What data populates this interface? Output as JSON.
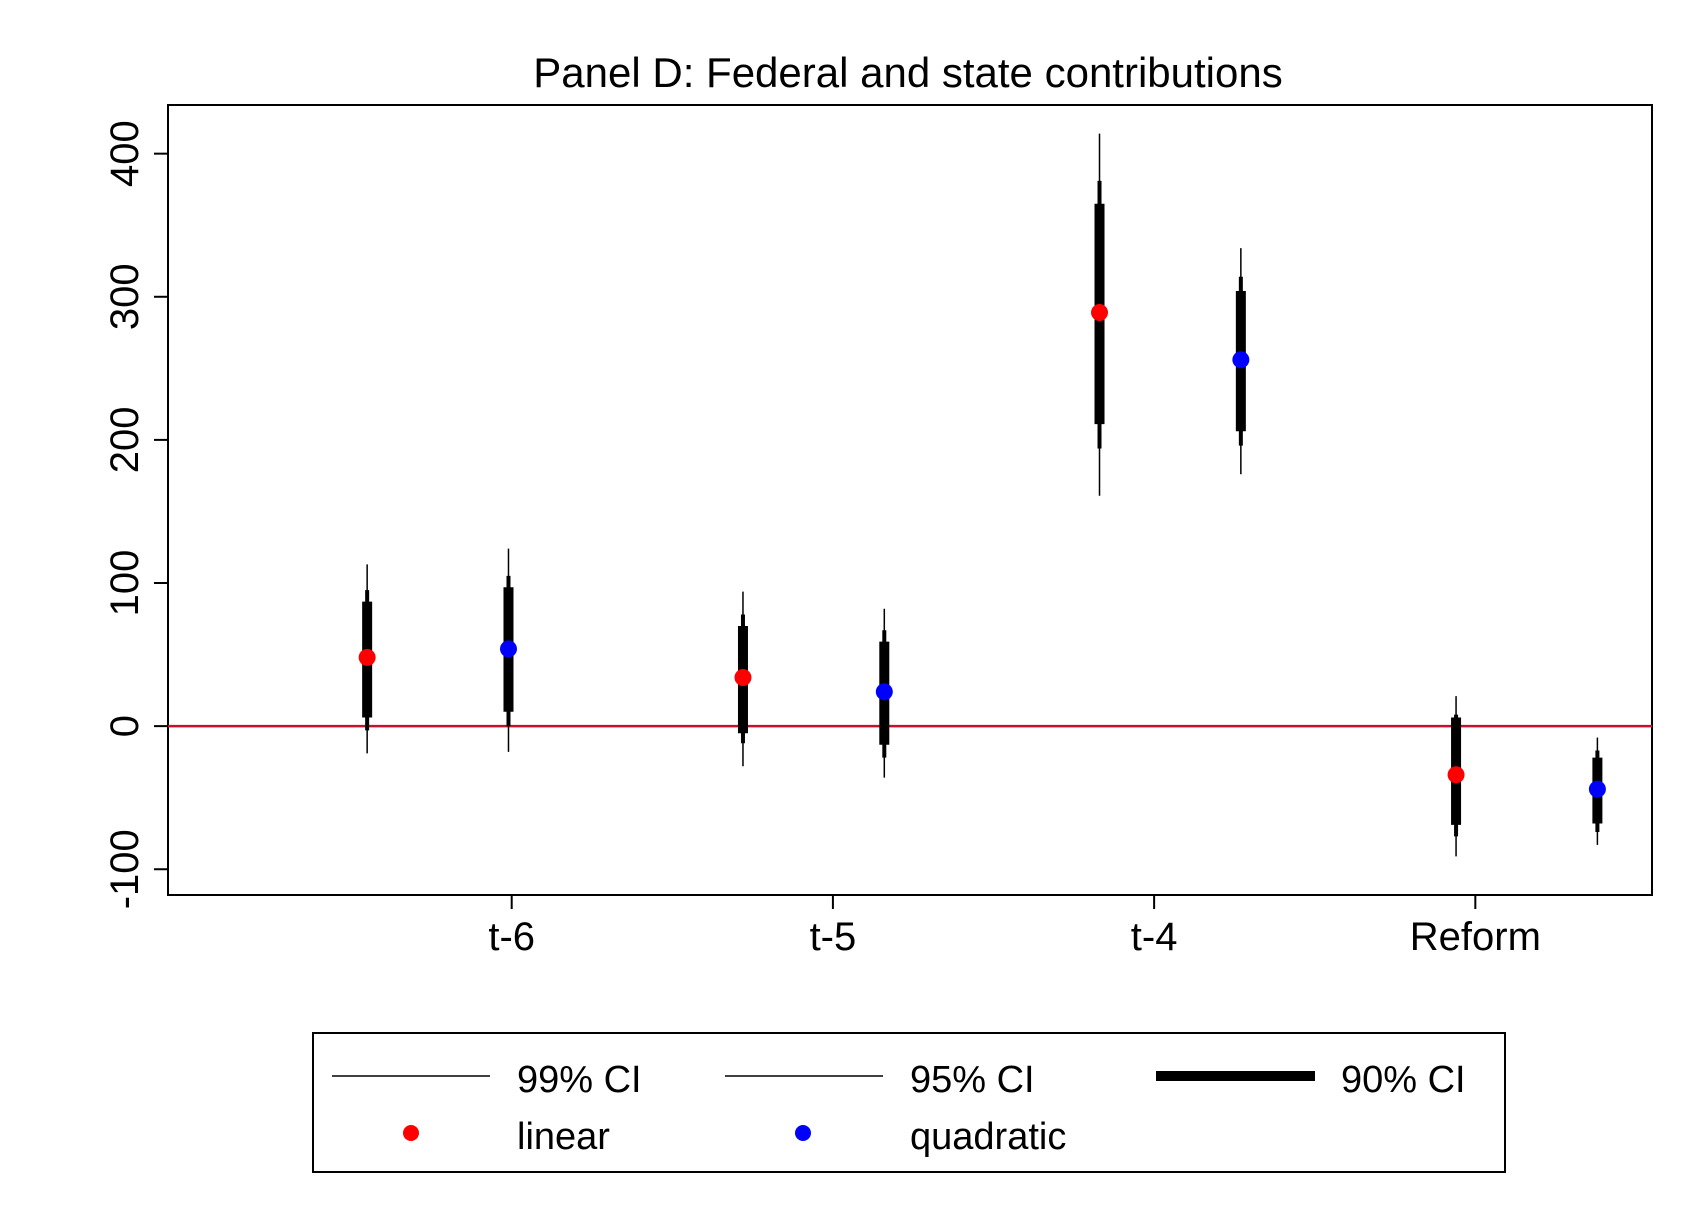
{
  "chart_data": {
    "type": "scatter",
    "title": "Panel D: Federal and state contributions",
    "xlabel": "",
    "ylabel": "",
    "categories": [
      "t-6",
      "t-5",
      "t-4",
      "Reform"
    ],
    "ylim": [
      -118,
      434
    ],
    "yticks": [
      -100,
      0,
      100,
      200,
      300,
      400
    ],
    "reference_line": {
      "y": 0,
      "color": "#c8102e"
    },
    "grid": false,
    "legend_position": "bottom",
    "legend": {
      "ci99": "99% CI",
      "ci95": "95% CI",
      "ci90": "90% CI"
    },
    "series": [
      {
        "name": "linear",
        "color": "#ff0000",
        "points": [
          {
            "category": "t-6",
            "x": 0.55,
            "estimate": 48,
            "ci90": [
              6,
              87
            ],
            "ci95": [
              -3,
              95
            ],
            "ci99": [
              -19,
              113
            ]
          },
          {
            "category": "t-5",
            "x": 1.72,
            "estimate": 34,
            "ci90": [
              -5,
              70
            ],
            "ci95": [
              -12,
              78
            ],
            "ci99": [
              -28,
              94
            ]
          },
          {
            "category": "t-4",
            "x": 2.83,
            "estimate": 289,
            "ci90": [
              211,
              365
            ],
            "ci95": [
              194,
              381
            ],
            "ci99": [
              161,
              414
            ]
          },
          {
            "category": "Reform",
            "x": 3.94,
            "estimate": -34,
            "ci90": [
              -69,
              6
            ],
            "ci95": [
              -77,
              8
            ],
            "ci99": [
              -91,
              21
            ]
          }
        ]
      },
      {
        "name": "quadratic",
        "color": "#0000ff",
        "points": [
          {
            "category": "t-6",
            "x": 0.99,
            "estimate": 54,
            "ci90": [
              10,
              97
            ],
            "ci95": [
              0,
              105
            ],
            "ci99": [
              -18,
              124
            ]
          },
          {
            "category": "t-5",
            "x": 2.16,
            "estimate": 24,
            "ci90": [
              -13,
              59
            ],
            "ci95": [
              -22,
              67
            ],
            "ci99": [
              -36,
              82
            ]
          },
          {
            "category": "t-4",
            "x": 3.27,
            "estimate": 256,
            "ci90": [
              206,
              304
            ],
            "ci95": [
              196,
              314
            ],
            "ci99": [
              176,
              334
            ]
          },
          {
            "category": "Reform",
            "x": 4.38,
            "estimate": -44,
            "ci90": [
              -68,
              -22
            ],
            "ci95": [
              -74,
              -17
            ],
            "ci99": [
              -83,
              -8
            ]
          }
        ]
      }
    ]
  }
}
